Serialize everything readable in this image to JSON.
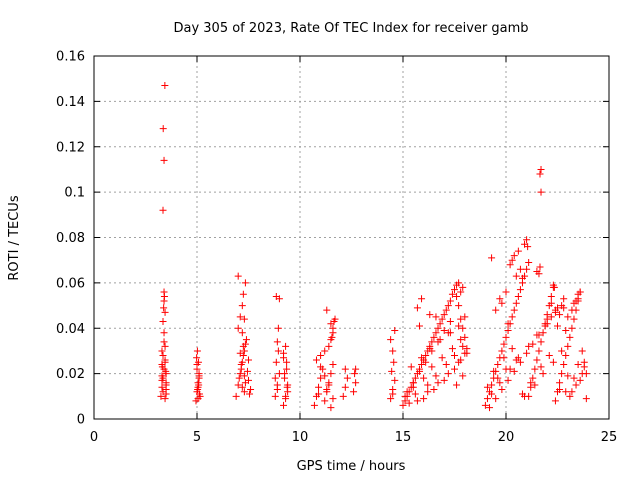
{
  "chart_data": {
    "type": "scatter",
    "title": "Day 305 of 2023, Rate Of TEC Index for receiver gamb",
    "xlabel": "GPS time / hours",
    "ylabel": "ROTI / TECUs",
    "xlim": [
      0,
      25
    ],
    "ylim": [
      0,
      0.16
    ],
    "xticks": [
      0,
      5,
      10,
      15,
      20,
      25
    ],
    "xtick_labels": [
      "0",
      "5",
      "10",
      "15",
      "20",
      "25"
    ],
    "yticks": [
      0,
      0.02,
      0.04,
      0.06,
      0.08,
      0.1,
      0.12,
      0.14,
      0.16
    ],
    "ytick_labels": [
      "0",
      "0.02",
      "0.04",
      "0.06",
      "0.08",
      "0.1",
      "0.12",
      "0.14",
      "0.16"
    ],
    "grid": true,
    "marker": "+",
    "color": "#ff0000",
    "series": [
      {
        "name": "ROTI",
        "x": [
          3.25,
          3.3,
          3.35,
          3.4,
          3.45,
          3.5,
          3.3,
          3.4,
          3.5,
          3.35,
          3.45,
          3.3,
          3.4,
          3.5,
          3.35,
          3.45,
          3.3,
          3.4,
          3.5,
          3.35,
          3.45,
          3.4,
          3.42,
          3.38,
          3.35,
          3.48,
          3.3,
          3.45,
          3.4,
          3.36,
          3.44,
          3.5,
          3.32,
          4.95,
          5.0,
          5.05,
          5.1,
          5.15,
          5.0,
          5.05,
          5.1,
          4.98,
          5.12,
          5.02,
          5.08,
          5.0,
          5.05,
          5.1,
          5.03,
          5.07,
          6.9,
          7.0,
          7.1,
          7.2,
          7.3,
          7.4,
          7.0,
          7.1,
          7.2,
          7.3,
          7.05,
          7.15,
          7.25,
          7.35,
          7.2,
          7.3,
          7.25,
          7.35,
          7.0,
          7.1,
          7.2,
          7.3,
          7.15,
          7.25,
          7.35,
          7.45,
          7.5,
          7.55,
          7.5,
          7.6,
          8.8,
          8.9,
          9.0,
          8.85,
          8.95,
          8.9,
          9.0,
          8.85,
          8.95,
          8.8,
          8.9,
          9.2,
          9.3,
          9.4,
          9.25,
          9.35,
          9.2,
          9.3,
          9.4,
          9.25,
          9.35,
          9.2,
          9.3,
          9.38,
          10.7,
          10.8,
          10.9,
          11.0,
          11.1,
          11.2,
          11.3,
          11.4,
          11.5,
          11.6,
          10.8,
          11.0,
          11.2,
          11.4,
          11.5,
          11.6,
          11.7,
          11.3,
          11.5,
          11.6,
          11.55,
          11.65,
          11.4,
          11.2,
          11.0,
          10.9,
          11.5,
          11.6,
          11.3,
          12.1,
          12.2,
          12.3,
          12.2,
          12.6,
          12.7,
          12.65,
          12.7,
          14.4,
          14.5,
          14.6,
          14.45,
          14.55,
          14.5,
          14.4,
          14.6,
          14.5,
          15.0,
          15.1,
          15.2,
          15.3,
          15.4,
          15.5,
          15.6,
          15.7,
          15.8,
          15.9,
          16.0,
          16.1,
          16.2,
          16.3,
          16.4,
          16.5,
          16.6,
          16.7,
          16.8,
          16.9,
          17.0,
          17.1,
          17.2,
          17.3,
          17.4,
          17.5,
          17.6,
          17.7,
          17.8,
          17.9,
          18.0,
          18.1,
          15.2,
          15.5,
          15.8,
          16.1,
          16.4,
          16.7,
          17.0,
          17.3,
          17.6,
          17.9,
          15.4,
          15.9,
          16.3,
          16.8,
          17.2,
          17.7,
          18.0,
          15.7,
          16.0,
          16.5,
          17.0,
          17.5,
          17.8,
          18.1,
          17.6,
          17.8,
          17.9,
          17.7,
          16.3,
          16.6,
          15.9,
          15.8,
          17.3,
          15.3,
          15.6,
          16.2,
          16.6,
          17.1,
          17.5,
          17.9,
          15.1,
          15.5,
          16.0,
          16.4,
          16.9,
          17.4,
          17.8,
          15.7,
          16.2,
          16.7,
          17.2,
          17.7,
          18.0,
          19.0,
          19.1,
          19.2,
          19.3,
          19.4,
          19.5,
          19.6,
          19.7,
          19.8,
          19.9,
          20.0,
          20.1,
          20.2,
          20.3,
          20.4,
          20.5,
          20.6,
          20.7,
          20.8,
          20.9,
          21.0,
          21.1,
          21.2,
          21.3,
          21.4,
          21.5,
          21.6,
          21.7,
          21.8,
          21.9,
          22.0,
          22.1,
          22.2,
          22.3,
          22.4,
          22.5,
          22.6,
          22.7,
          22.8,
          22.9,
          23.0,
          23.1,
          23.2,
          23.3,
          23.4,
          23.5,
          23.6,
          23.7,
          23.8,
          23.9,
          19.2,
          19.5,
          19.8,
          20.1,
          20.4,
          20.7,
          21.0,
          21.3,
          21.6,
          21.9,
          22.2,
          22.5,
          22.8,
          23.1,
          23.4,
          23.7,
          19.3,
          19.7,
          20.2,
          20.6,
          21.1,
          21.5,
          22.0,
          22.4,
          22.9,
          23.3,
          23.8,
          19.7,
          19.8,
          20.0,
          20.2,
          20.3,
          20.4,
          20.5,
          20.6,
          20.8,
          20.9,
          21.0,
          21.05,
          21.1,
          21.5,
          21.65,
          21.7,
          21.65,
          21.6,
          21.7,
          22.0,
          22.2,
          22.4,
          22.5,
          22.6,
          22.8,
          23.0,
          23.2,
          23.4,
          23.5,
          23.6,
          22.3,
          22.35,
          23.3,
          23.5,
          22.9,
          20.7,
          20.1,
          19.5,
          19.3,
          22.7,
          19.1,
          19.6,
          20.0,
          20.5,
          20.9,
          21.4,
          21.8,
          22.3,
          22.7,
          23.2,
          23.6,
          19.4,
          19.9,
          20.3,
          20.8,
          21.2,
          21.7,
          22.1,
          22.6,
          23.0,
          23.5,
          23.9
        ],
        "y": [
          0.01,
          0.014,
          0.018,
          0.022,
          0.026,
          0.015,
          0.03,
          0.034,
          0.02,
          0.012,
          0.009,
          0.024,
          0.038,
          0.016,
          0.028,
          0.047,
          0.019,
          0.052,
          0.013,
          0.043,
          0.025,
          0.056,
          0.054,
          0.049,
          0.092,
          0.021,
          0.017,
          0.032,
          0.114,
          0.128,
          0.147,
          0.011,
          0.023,
          0.008,
          0.012,
          0.016,
          0.02,
          0.01,
          0.024,
          0.014,
          0.018,
          0.027,
          0.011,
          0.03,
          0.015,
          0.022,
          0.009,
          0.019,
          0.013,
          0.025,
          0.01,
          0.015,
          0.02,
          0.025,
          0.03,
          0.035,
          0.04,
          0.045,
          0.05,
          0.012,
          0.018,
          0.022,
          0.028,
          0.033,
          0.038,
          0.044,
          0.055,
          0.06,
          0.063,
          0.029,
          0.014,
          0.019,
          0.024,
          0.032,
          0.016,
          0.021,
          0.026,
          0.011,
          0.017,
          0.013,
          0.01,
          0.015,
          0.02,
          0.025,
          0.03,
          0.034,
          0.053,
          0.054,
          0.04,
          0.018,
          0.013,
          0.006,
          0.01,
          0.015,
          0.02,
          0.025,
          0.029,
          0.032,
          0.012,
          0.018,
          0.022,
          0.027,
          0.009,
          0.014,
          0.006,
          0.01,
          0.014,
          0.018,
          0.022,
          0.008,
          0.012,
          0.016,
          0.02,
          0.024,
          0.026,
          0.028,
          0.03,
          0.032,
          0.035,
          0.038,
          0.044,
          0.048,
          0.042,
          0.04,
          0.036,
          0.043,
          0.015,
          0.019,
          0.023,
          0.011,
          0.005,
          0.009,
          0.013,
          0.01,
          0.014,
          0.018,
          0.022,
          0.012,
          0.016,
          0.02,
          0.022,
          0.009,
          0.013,
          0.017,
          0.021,
          0.025,
          0.03,
          0.035,
          0.039,
          0.011,
          0.006,
          0.008,
          0.01,
          0.012,
          0.014,
          0.016,
          0.018,
          0.02,
          0.022,
          0.024,
          0.026,
          0.028,
          0.03,
          0.032,
          0.034,
          0.036,
          0.038,
          0.04,
          0.042,
          0.044,
          0.046,
          0.048,
          0.05,
          0.052,
          0.055,
          0.057,
          0.059,
          0.06,
          0.044,
          0.04,
          0.036,
          0.031,
          0.012,
          0.016,
          0.021,
          0.025,
          0.03,
          0.034,
          0.039,
          0.043,
          0.015,
          0.019,
          0.023,
          0.027,
          0.031,
          0.035,
          0.038,
          0.041,
          0.045,
          0.049,
          0.009,
          0.013,
          0.017,
          0.022,
          0.026,
          0.029,
          0.054,
          0.056,
          0.058,
          0.05,
          0.046,
          0.045,
          0.053,
          0.041,
          0.038,
          0.007,
          0.011,
          0.015,
          0.019,
          0.024,
          0.028,
          0.032,
          0.01,
          0.014,
          0.018,
          0.023,
          0.027,
          0.031,
          0.035,
          0.008,
          0.012,
          0.016,
          0.02,
          0.025,
          0.029,
          0.006,
          0.009,
          0.012,
          0.015,
          0.018,
          0.021,
          0.024,
          0.027,
          0.03,
          0.033,
          0.036,
          0.039,
          0.042,
          0.045,
          0.048,
          0.051,
          0.054,
          0.057,
          0.06,
          0.063,
          0.066,
          0.01,
          0.014,
          0.018,
          0.022,
          0.026,
          0.03,
          0.034,
          0.038,
          0.042,
          0.046,
          0.05,
          0.054,
          0.058,
          0.008,
          0.012,
          0.016,
          0.02,
          0.024,
          0.028,
          0.032,
          0.036,
          0.04,
          0.044,
          0.048,
          0.052,
          0.056,
          0.03,
          0.025,
          0.02,
          0.005,
          0.009,
          0.013,
          0.017,
          0.021,
          0.025,
          0.029,
          0.033,
          0.037,
          0.041,
          0.045,
          0.049,
          0.053,
          0.01,
          0.015,
          0.02,
          0.011,
          0.016,
          0.022,
          0.027,
          0.032,
          0.037,
          0.042,
          0.047,
          0.012,
          0.018,
          0.023,
          0.053,
          0.051,
          0.056,
          0.068,
          0.07,
          0.072,
          0.063,
          0.074,
          0.062,
          0.077,
          0.079,
          0.076,
          0.069,
          0.065,
          0.067,
          0.11,
          0.108,
          0.064,
          0.1,
          0.044,
          0.051,
          0.048,
          0.041,
          0.046,
          0.049,
          0.045,
          0.048,
          0.052,
          0.055,
          0.056,
          0.059,
          0.058,
          0.051,
          0.053,
          0.039,
          0.066,
          0.042,
          0.048,
          0.071,
          0.05,
          0.014,
          0.018,
          0.022,
          0.026,
          0.01,
          0.015,
          0.02,
          0.025,
          0.03,
          0.012,
          0.017,
          0.021,
          0.027,
          0.031,
          0.011,
          0.016,
          0.023,
          0.028,
          0.013,
          0.019,
          0.024,
          0.009
        ]
      }
    ]
  }
}
